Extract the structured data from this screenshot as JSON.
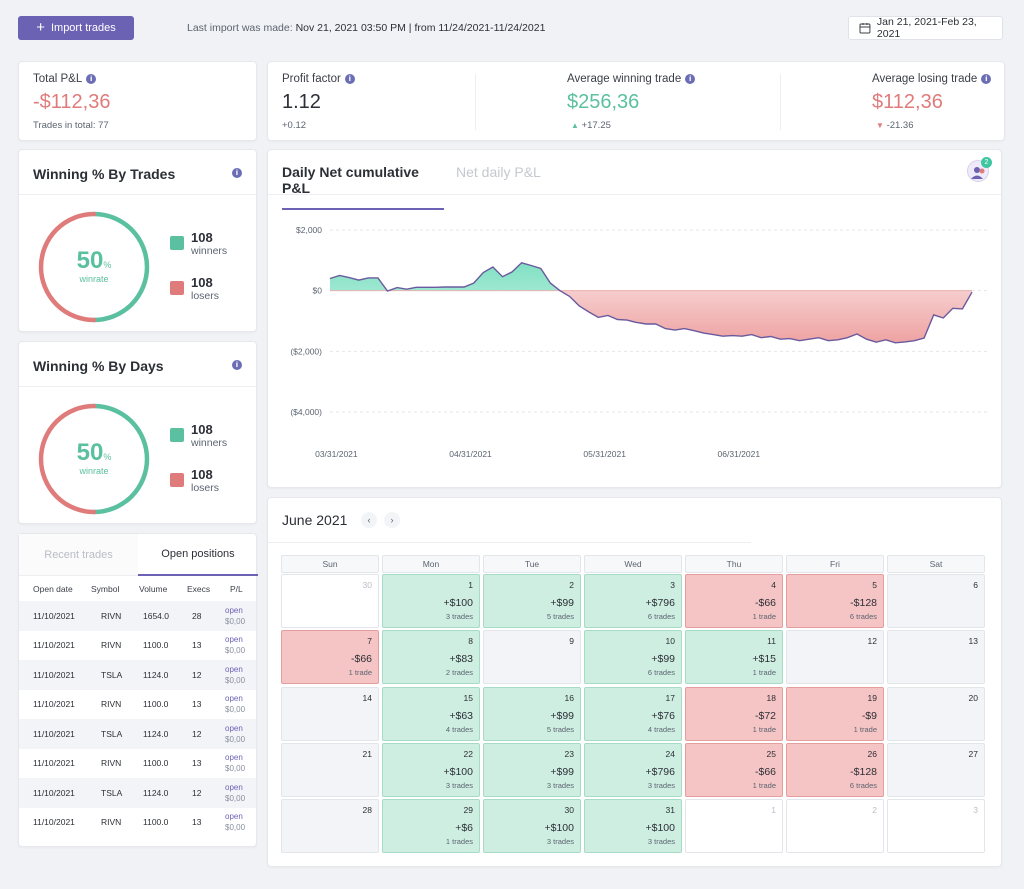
{
  "topbar": {
    "import_label": "Import trades",
    "last_import_prefix": "Last import was made:",
    "last_import_value": "Nov 21, 2021 03:50 PM | from 11/24/2021-11/24/2021",
    "date_range": "Jan 21, 2021-Feb 23, 2021"
  },
  "total_pl": {
    "label": "Total P&L",
    "value": "-$112,36",
    "sub": "Trades in total: 77"
  },
  "profit_factor": {
    "label": "Profit factor",
    "value": "1.12",
    "sub": "+0.12"
  },
  "avg_win": {
    "label": "Average winning trade",
    "value": "$256,36",
    "sub": "+17.25"
  },
  "avg_loss": {
    "label": "Average losing trade",
    "value": "$112,36",
    "sub": "-21.36"
  },
  "win_trades": {
    "title": "Winning % By Trades",
    "pct": "50",
    "pct_sign": "%",
    "caption": "winrate",
    "winners_num": "108",
    "winners_label": "winners",
    "losers_num": "108",
    "losers_label": "losers"
  },
  "win_days": {
    "title": "Winning % By Days",
    "pct": "50",
    "pct_sign": "%",
    "caption": "winrate",
    "winners_num": "108",
    "winners_label": "winners",
    "losers_num": "108",
    "losers_label": "losers"
  },
  "positions": {
    "tab_recent": "Recent trades",
    "tab_open": "Open positions",
    "headers": [
      "Open date",
      "Symbol",
      "Volume",
      "Execs",
      "P/L"
    ],
    "rows": [
      {
        "date": "11/10/2021",
        "symbol": "RIVN",
        "volume": "1654.0",
        "execs": "28",
        "status": "open",
        "pl": "$0,00"
      },
      {
        "date": "11/10/2021",
        "symbol": "RIVN",
        "volume": "1100.0",
        "execs": "13",
        "status": "open",
        "pl": "$0,00"
      },
      {
        "date": "11/10/2021",
        "symbol": "TSLA",
        "volume": "1124.0",
        "execs": "12",
        "status": "open",
        "pl": "$0,00"
      },
      {
        "date": "11/10/2021",
        "symbol": "RIVN",
        "volume": "1100.0",
        "execs": "13",
        "status": "open",
        "pl": "$0,00"
      },
      {
        "date": "11/10/2021",
        "symbol": "TSLA",
        "volume": "1124.0",
        "execs": "12",
        "status": "open",
        "pl": "$0,00"
      },
      {
        "date": "11/10/2021",
        "symbol": "RIVN",
        "volume": "1100.0",
        "execs": "13",
        "status": "open",
        "pl": "$0,00"
      },
      {
        "date": "11/10/2021",
        "symbol": "TSLA",
        "volume": "1124.0",
        "execs": "12",
        "status": "open",
        "pl": "$0,00"
      },
      {
        "date": "11/10/2021",
        "symbol": "RIVN",
        "volume": "1100.0",
        "execs": "13",
        "status": "open",
        "pl": "$0,00"
      }
    ]
  },
  "chart": {
    "tab_active": "Daily Net cumulative P&L",
    "tab_inactive": "Net daily P&L",
    "badge": "2"
  },
  "chart_data": {
    "type": "area",
    "title": "Daily Net cumulative P&L",
    "yticks": [
      "$2,000",
      "$0",
      "($2,000)",
      "($4,000)"
    ],
    "ytick_values": [
      2000,
      0,
      -2000,
      -4000
    ],
    "ylim": [
      -4500,
      2300
    ],
    "xticks": [
      "03/31/2021",
      "04/31/2021",
      "05/31/2021",
      "06/31/2021"
    ],
    "xtick_positions": [
      3,
      31,
      59,
      87
    ],
    "x": [
      0,
      2,
      4,
      6,
      8,
      10,
      12,
      14,
      16,
      18,
      20,
      22,
      24,
      26,
      28,
      30,
      32,
      34,
      36,
      38,
      40,
      42,
      44,
      46,
      48,
      50,
      52,
      54,
      56,
      58,
      60,
      62,
      64,
      66,
      68,
      70,
      72,
      74,
      76,
      78,
      80,
      82,
      84,
      86,
      88,
      90,
      92,
      94,
      96,
      98,
      100,
      102,
      104,
      106,
      108,
      110,
      112,
      114,
      116,
      118,
      120,
      122,
      124,
      126,
      128,
      130,
      132,
      134
    ],
    "values": [
      400,
      500,
      430,
      350,
      420,
      420,
      -10,
      100,
      50,
      110,
      110,
      110,
      120,
      120,
      120,
      250,
      600,
      780,
      460,
      620,
      920,
      830,
      730,
      250,
      0,
      -190,
      -500,
      -700,
      -880,
      -820,
      -950,
      -970,
      -1050,
      -1100,
      -1100,
      -1250,
      -1300,
      -1250,
      -1320,
      -1400,
      -1450,
      -1500,
      -1480,
      -1500,
      -1450,
      -1550,
      -1510,
      -1600,
      -1580,
      -1650,
      -1600,
      -1550,
      -1650,
      -1620,
      -1550,
      -1430,
      -1600,
      -1700,
      -1620,
      -1720,
      -1690,
      -1650,
      -1560,
      -800,
      -900,
      -580,
      -600,
      -50
    ]
  },
  "calendar": {
    "title": "June 2021",
    "prev": "‹",
    "next": "›",
    "weekdays": [
      "Sun",
      "Mon",
      "Tue",
      "Wed",
      "Thu",
      "Fri",
      "Sat"
    ],
    "weeks": [
      [
        {
          "d": "30",
          "t": "out"
        },
        {
          "d": "1",
          "t": "win",
          "a": "+$100",
          "n": "3 trades"
        },
        {
          "d": "2",
          "t": "win",
          "a": "+$99",
          "n": "5 trades"
        },
        {
          "d": "3",
          "t": "win",
          "a": "+$796",
          "n": "6 trades"
        },
        {
          "d": "4",
          "t": "loss",
          "a": "-$66",
          "n": "1 trade"
        },
        {
          "d": "5",
          "t": "loss",
          "a": "-$128",
          "n": "6 trades"
        },
        {
          "d": "6",
          "t": "none"
        }
      ],
      [
        {
          "d": "7",
          "t": "loss",
          "a": "-$66",
          "n": "1 trade"
        },
        {
          "d": "8",
          "t": "win",
          "a": "+$83",
          "n": "2 trades"
        },
        {
          "d": "9",
          "t": "none"
        },
        {
          "d": "10",
          "t": "win",
          "a": "+$99",
          "n": "6 trades"
        },
        {
          "d": "11",
          "t": "win",
          "a": "+$15",
          "n": "1 trade"
        },
        {
          "d": "12",
          "t": "none"
        },
        {
          "d": "13",
          "t": "none"
        }
      ],
      [
        {
          "d": "14",
          "t": "none"
        },
        {
          "d": "15",
          "t": "win",
          "a": "+$63",
          "n": "4 trades"
        },
        {
          "d": "16",
          "t": "win",
          "a": "+$99",
          "n": "5 trades"
        },
        {
          "d": "17",
          "t": "win",
          "a": "+$76",
          "n": "4 trades"
        },
        {
          "d": "18",
          "t": "loss",
          "a": "-$72",
          "n": "1 trade"
        },
        {
          "d": "19",
          "t": "loss",
          "a": "-$9",
          "n": "1 trade"
        },
        {
          "d": "20",
          "t": "none"
        }
      ],
      [
        {
          "d": "21",
          "t": "none"
        },
        {
          "d": "22",
          "t": "win",
          "a": "+$100",
          "n": "3 trades"
        },
        {
          "d": "23",
          "t": "win",
          "a": "+$99",
          "n": "3 trades"
        },
        {
          "d": "24",
          "t": "win",
          "a": "+$796",
          "n": "3 trades"
        },
        {
          "d": "25",
          "t": "loss",
          "a": "-$66",
          "n": "1 trade"
        },
        {
          "d": "26",
          "t": "loss",
          "a": "-$128",
          "n": "6 trades"
        },
        {
          "d": "27",
          "t": "none"
        }
      ],
      [
        {
          "d": "28",
          "t": "none"
        },
        {
          "d": "29",
          "t": "win",
          "a": "+$6",
          "n": "1 trades"
        },
        {
          "d": "30",
          "t": "win",
          "a": "+$100",
          "n": "3 trades"
        },
        {
          "d": "31",
          "t": "win",
          "a": "+$100",
          "n": "3 trades"
        },
        {
          "d": "1",
          "t": "out"
        },
        {
          "d": "2",
          "t": "out"
        },
        {
          "d": "3",
          "t": "out"
        }
      ]
    ]
  },
  "colors": {
    "accent": "#6b62b4",
    "win": "#5bc0a0",
    "loss": "#e07b7b"
  }
}
